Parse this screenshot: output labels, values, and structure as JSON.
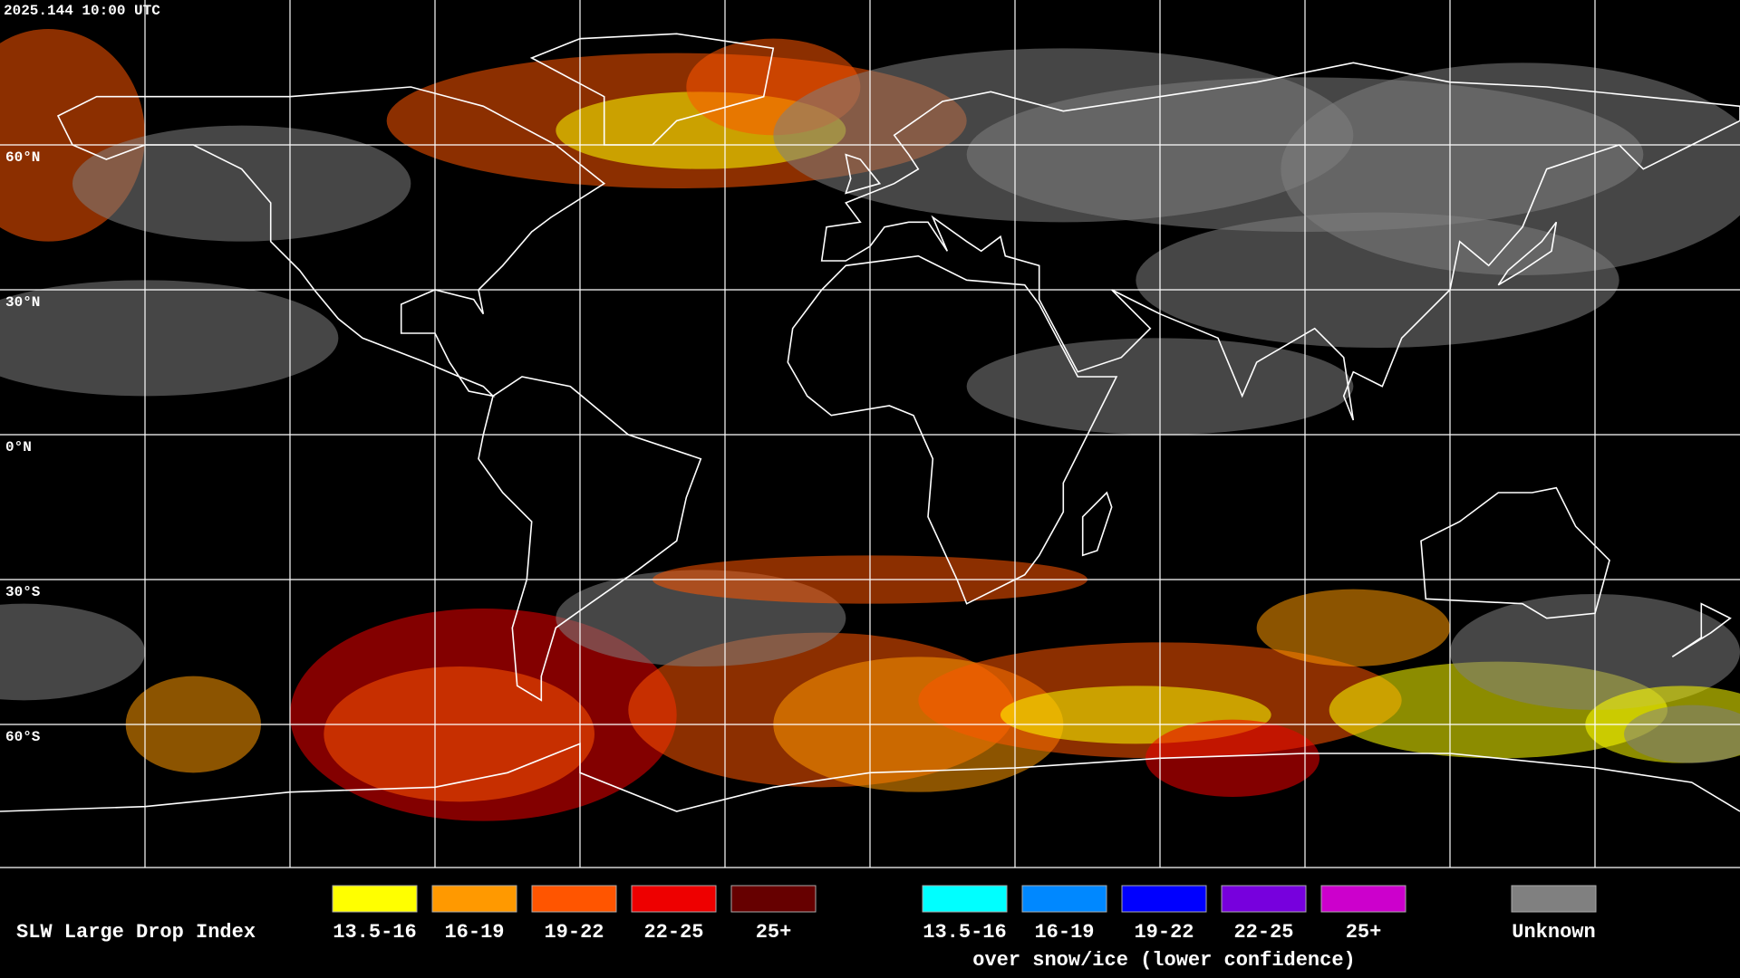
{
  "header": {
    "timestamp": "2025.144 10:00 UTC"
  },
  "map": {
    "lat_labels": [
      "60°N",
      "30°N",
      "0°N",
      "30°S",
      "60°S"
    ]
  },
  "legend": {
    "title": "SLW Large Drop Index",
    "groups": [
      {
        "items": [
          {
            "label": "13.5-16",
            "color": "#ffff00"
          },
          {
            "label": "16-19",
            "color": "#ff9900"
          },
          {
            "label": "19-22",
            "color": "#ff5500"
          },
          {
            "label": "22-25",
            "color": "#ee0000"
          },
          {
            "label": "25+",
            "color": "#660000"
          }
        ]
      },
      {
        "items": [
          {
            "label": "13.5-16",
            "color": "#00ffff"
          },
          {
            "label": "16-19",
            "color": "#0088ff"
          },
          {
            "label": "19-22",
            "color": "#0000ff"
          },
          {
            "label": "22-25",
            "color": "#7700dd"
          },
          {
            "label": "25+",
            "color": "#cc00cc"
          }
        ],
        "caption": "over snow/ice (lower confidence)"
      },
      {
        "items": [
          {
            "label": "Unknown",
            "color": "#808080"
          }
        ]
      }
    ]
  }
}
